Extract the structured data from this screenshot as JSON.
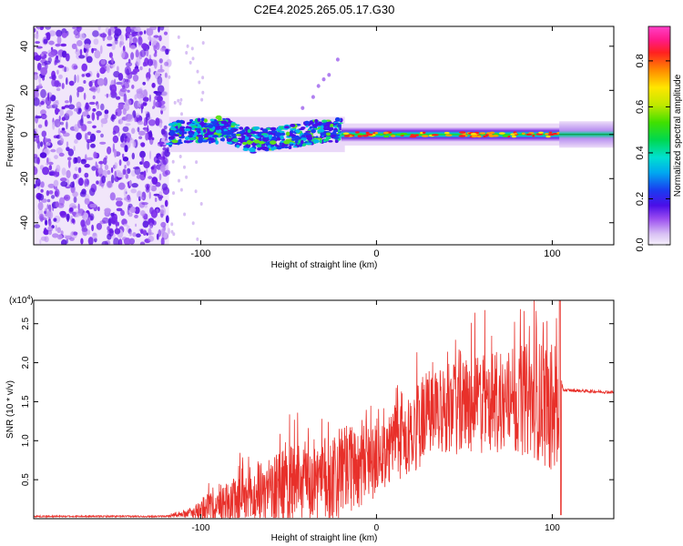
{
  "title": "C2E4.2025.265.05.17.G30",
  "chart_data": [
    {
      "type": "heatmap",
      "xlabel": "Height of straight line (km)",
      "ylabel": "Frequency (Hz)",
      "xlim": [
        -195,
        135
      ],
      "ylim": [
        -50,
        49
      ],
      "xticks": [
        -100,
        0,
        100
      ],
      "yticks": [
        40,
        20,
        0,
        -20,
        -40
      ],
      "colorbar": {
        "label": "Normalized spectral amplitude",
        "range": [
          0,
          0.95
        ],
        "ticks": [
          "0.0",
          "0.2",
          "0.4",
          "0.6",
          "0.8"
        ],
        "tick_values": [
          0.0,
          0.2,
          0.4,
          0.6,
          0.8
        ]
      },
      "description_regions": [
        {
          "x_range": [
            -195,
            -120
          ],
          "frequency_range": [
            -50,
            49
          ],
          "amplitude": "low (noise)"
        },
        {
          "x_range": [
            -120,
            -20
          ],
          "frequency_center": 0,
          "frequency_halfwidth": 6,
          "amplitude": "0.2-0.6"
        },
        {
          "x_range": [
            -20,
            105
          ],
          "frequency_center": 0,
          "frequency_halfwidth": 3,
          "amplitude": "0.4-0.95"
        },
        {
          "x_range": [
            105,
            135
          ],
          "frequency_center": 0,
          "frequency_halfwidth": 2,
          "amplitude": "0.5-0.7"
        }
      ]
    },
    {
      "type": "line",
      "series": [
        {
          "name": "SNR",
          "color": "#e8302a"
        }
      ],
      "xlabel": "Height of straight line (km)",
      "ylabel": "SNR (10 * v/v)",
      "scale_note": "(x10^4)",
      "xlim": [
        -195,
        135
      ],
      "ylim": [
        0,
        2.8
      ],
      "xticks": [
        -100,
        0,
        100
      ],
      "yticks": [
        0.5,
        1.0,
        1.5,
        2.0,
        2.5
      ],
      "ytick_labels": [
        "0.5",
        "1.0",
        "1.5",
        "2.0",
        "2.5"
      ],
      "envelope": [
        {
          "x": -195,
          "mean": 0.03,
          "amp": 0.01
        },
        {
          "x": -120,
          "mean": 0.03,
          "amp": 0.01
        },
        {
          "x": -105,
          "mean": 0.08,
          "amp": 0.06
        },
        {
          "x": -90,
          "mean": 0.2,
          "amp": 0.3
        },
        {
          "x": -70,
          "mean": 0.3,
          "amp": 0.35
        },
        {
          "x": -50,
          "mean": 0.45,
          "amp": 0.55
        },
        {
          "x": -30,
          "mean": 0.55,
          "amp": 0.6
        },
        {
          "x": -10,
          "mean": 0.75,
          "amp": 0.55
        },
        {
          "x": 10,
          "mean": 1.0,
          "amp": 0.55
        },
        {
          "x": 30,
          "mean": 1.35,
          "amp": 0.55
        },
        {
          "x": 50,
          "mean": 1.5,
          "amp": 0.6
        },
        {
          "x": 70,
          "mean": 1.55,
          "amp": 0.7
        },
        {
          "x": 90,
          "mean": 1.6,
          "amp": 0.75
        },
        {
          "x": 103,
          "mean": 1.5,
          "amp": 0.9
        },
        {
          "x": 106,
          "mean": 1.65,
          "amp": 0.02
        },
        {
          "x": 135,
          "mean": 1.62,
          "amp": 0.02
        }
      ]
    }
  ]
}
